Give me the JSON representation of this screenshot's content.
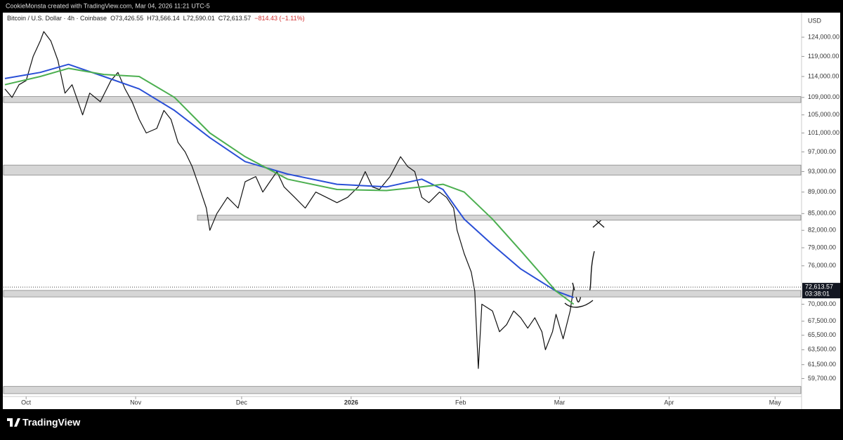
{
  "chart_data": {
    "type": "line",
    "attribution": "CookieMonsta created with TradingView.com, Mar 04, 2026 11:21 UTC-5",
    "title": "Bitcoin / U.S. Dollar · 4h · Coinbase",
    "ohlc": [
      "O73,426.55",
      "H73,566.14",
      "L72,590.01",
      "C72,613.57",
      "−814.43 (−1.11%)"
    ],
    "currency": "USD",
    "brand": "TradingView",
    "log_scale": true,
    "ylim": [
      56000,
      130700
    ],
    "yticks": [
      {
        "value": 124000,
        "label": "124,000.00"
      },
      {
        "value": 119000,
        "label": "119,000.00"
      },
      {
        "value": 114000,
        "label": "114,000.00"
      },
      {
        "value": 109000,
        "label": "109,000.00"
      },
      {
        "value": 105000,
        "label": "105,000.00"
      },
      {
        "value": 101000,
        "label": "101,000.00"
      },
      {
        "value": 97000,
        "label": "97,000.00"
      },
      {
        "value": 93000,
        "label": "93,000.00"
      },
      {
        "value": 89000,
        "label": "89,000.00"
      },
      {
        "value": 85000,
        "label": "85,000.00"
      },
      {
        "value": 82000,
        "label": "82,000.00"
      },
      {
        "value": 79000,
        "label": "79,000.00"
      },
      {
        "value": 76000,
        "label": "76,000.00"
      },
      {
        "value": 70000,
        "label": "70,000.00"
      },
      {
        "value": 67500,
        "label": "67,500.00"
      },
      {
        "value": 65500,
        "label": "65,500.00"
      },
      {
        "value": 63500,
        "label": "63,500.00"
      },
      {
        "value": 61500,
        "label": "61,500.00"
      },
      {
        "value": 59700,
        "label": "59,700.00"
      }
    ],
    "xlim": [
      -6.4,
      219.3
    ],
    "xticks": [
      {
        "value": 0,
        "label": "Oct"
      },
      {
        "value": 31,
        "label": "Nov"
      },
      {
        "value": 61,
        "label": "Dec"
      },
      {
        "value": 92,
        "label": "2026"
      },
      {
        "value": 123,
        "label": "Feb"
      },
      {
        "value": 151,
        "label": "Mar"
      },
      {
        "value": 182,
        "label": "Apr"
      },
      {
        "value": 212,
        "label": "May"
      }
    ],
    "last_price": {
      "value": 72613.57,
      "label": "72,613.57"
    },
    "countdown": "03:38:01",
    "zones": [
      {
        "low": 107800,
        "high": 109200,
        "start": -6.4,
        "color": "#d6d6d6"
      },
      {
        "low": 92300,
        "high": 94300,
        "start": -6.4,
        "color": "#d6d6d6"
      },
      {
        "low": 83800,
        "high": 84700,
        "start": 48.5,
        "color": "#d6d6d6"
      },
      {
        "low": 71100,
        "high": 72100,
        "start": -6.4,
        "color": "#d6d6d6"
      },
      {
        "low": 57800,
        "high": 58700,
        "start": -6.4,
        "color": "#d6d6d6"
      }
    ],
    "series": [
      {
        "color": "#111111",
        "width": 1.2,
        "x": [
          -6,
          -4,
          -2,
          0,
          2,
          4,
          5,
          7,
          9,
          11,
          13,
          16,
          18,
          21,
          24,
          26,
          28,
          30,
          32,
          34,
          37,
          39,
          41,
          43,
          45,
          47,
          49,
          51,
          52,
          54,
          57,
          60,
          62,
          65,
          67,
          69,
          71,
          73,
          76,
          79,
          82,
          85,
          88,
          91,
          94,
          96,
          98,
          100,
          103,
          106,
          108,
          110,
          112,
          114,
          117,
          119,
          121,
          122,
          124,
          126,
          127,
          128,
          129,
          132,
          134,
          136,
          138,
          140,
          142,
          144,
          146,
          147,
          149,
          150,
          152,
          154,
          155
        ],
        "values": [
          111000,
          109000,
          112000,
          113000,
          119000,
          123000,
          125500,
          123000,
          118000,
          110000,
          112000,
          105000,
          110000,
          108000,
          113000,
          115000,
          111000,
          108000,
          104000,
          101000,
          102000,
          106000,
          104000,
          99000,
          97000,
          94000,
          90000,
          86000,
          82000,
          85000,
          88000,
          86000,
          91000,
          92000,
          89000,
          91000,
          93000,
          90000,
          88000,
          86000,
          89000,
          88000,
          87000,
          88000,
          90000,
          93000,
          90000,
          89500,
          92000,
          96000,
          94000,
          93000,
          88000,
          87000,
          89000,
          88000,
          86000,
          82000,
          78000,
          75000,
          72000,
          61000,
          70000,
          69000,
          66000,
          67000,
          69000,
          68000,
          66500,
          68000,
          66000,
          63500,
          66000,
          68500,
          65000,
          69000,
          72600
        ]
      },
      {
        "color": "#2a4fd6",
        "width": 2,
        "x": [
          -6,
          4,
          12,
          22,
          32,
          42,
          52,
          62,
          74,
          88,
          102,
          112,
          118,
          124,
          132,
          140,
          150,
          155
        ],
        "values": [
          113500,
          115000,
          117000,
          114000,
          111000,
          106000,
          100000,
          95000,
          92500,
          90500,
          90000,
          91500,
          89500,
          84000,
          79500,
          75500,
          72000,
          71000
        ]
      },
      {
        "color": "#4caf50",
        "width": 2,
        "x": [
          -6,
          4,
          12,
          22,
          32,
          42,
          52,
          62,
          74,
          88,
          102,
          112,
          118,
          124,
          132,
          140,
          150,
          155
        ],
        "values": [
          112000,
          114000,
          116000,
          114500,
          114000,
          109000,
          101000,
          96000,
          91500,
          89500,
          89300,
          90000,
          90500,
          89000,
          84000,
          78500,
          72000,
          70000
        ]
      }
    ]
  }
}
